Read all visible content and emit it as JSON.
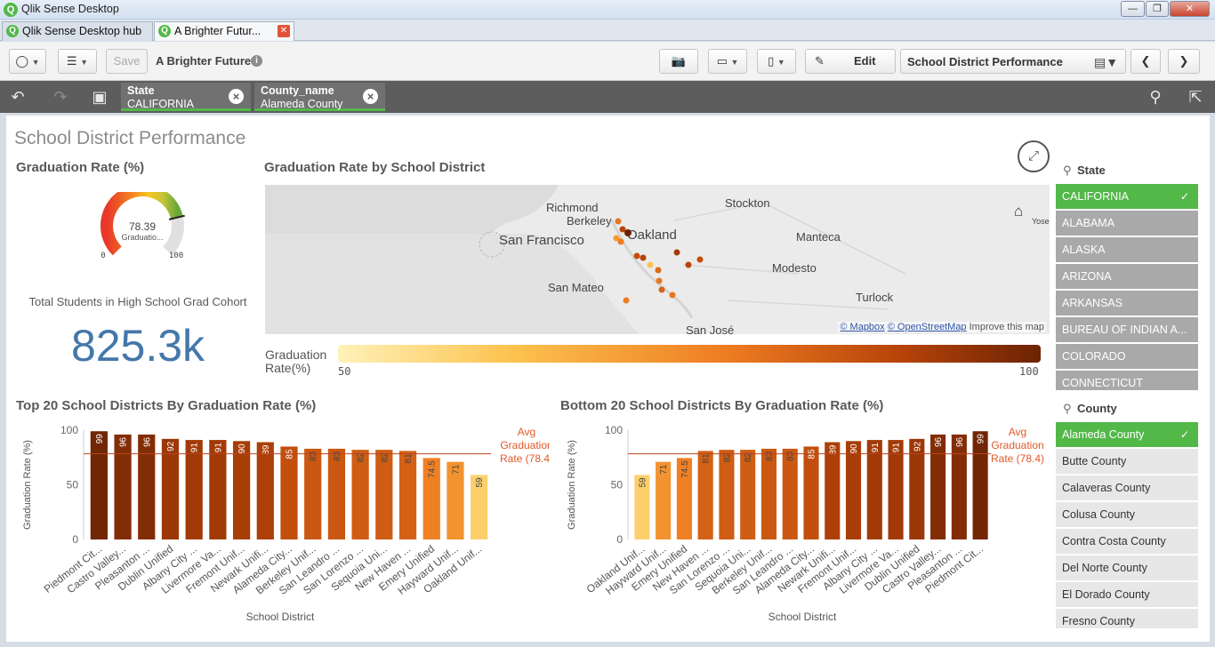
{
  "window": {
    "title": "Qlik Sense Desktop"
  },
  "tabs": [
    {
      "label": "Qlik Sense Desktop hub"
    },
    {
      "label": "A Brighter Futur..."
    }
  ],
  "toolbar": {
    "save_label": "Save",
    "app_title": "A Brighter Future",
    "edit_label": "Edit",
    "sheet_name": "School District Performance"
  },
  "selections": [
    {
      "field": "State",
      "value": "CALIFORNIA"
    },
    {
      "field": "County_name",
      "value": "Alameda County"
    }
  ],
  "sheet": {
    "title": "School District Performance",
    "gauge": {
      "title": "Graduation Rate (%)",
      "value": 78.39,
      "value_label": "78.39",
      "sublabel": "Graduatio...",
      "min_label": "0",
      "max_label": "100",
      "min": 0,
      "max": 100
    },
    "kpi": {
      "label": "Total Students in High School Grad Cohort",
      "value": "825.3k"
    },
    "map": {
      "title": "Graduation Rate by School District",
      "cities": [
        "Richmond",
        "Berkeley",
        "San Francisco",
        "Oakland",
        "Stockton",
        "Manteca",
        "Modesto",
        "San Mateo",
        "Turlock",
        "San José",
        "Yose"
      ],
      "credit_mapbox": "© Mapbox",
      "credit_osm": "© OpenStreetMap",
      "credit_improve": "Improve this map",
      "legend_title": "Graduation Rate(%)",
      "legend_min": "50",
      "legend_max": "100"
    },
    "state_list": {
      "title": "State",
      "items": [
        "CALIFORNIA",
        "ALABAMA",
        "ALASKA",
        "ARIZONA",
        "ARKANSAS",
        "BUREAU OF INDIAN A...",
        "COLORADO",
        "CONNECTICUT"
      ]
    },
    "county_list": {
      "title": "County",
      "items": [
        "Alameda County",
        "Butte County",
        "Calaveras County",
        "Colusa County",
        "Contra Costa County",
        "Del Norte County",
        "El Dorado County",
        "Fresno County"
      ]
    }
  },
  "chart_data": [
    {
      "type": "bar",
      "title": "Top 20 School Districts By Graduation Rate (%)",
      "xlabel": "School District",
      "ylabel": "Graduation Rate (%)",
      "ylim": [
        0,
        100
      ],
      "yticks": [
        "0",
        "50",
        "100"
      ],
      "categories": [
        "Piedmont Cit...",
        "Castro Valley...",
        "Pleasanton ...",
        "Dublin Unified",
        "Albany City ...",
        "Livermore Va...",
        "Fremont Unif...",
        "Newark Unifi...",
        "Alameda City...",
        "Berkeley Unif...",
        "San Leandro ...",
        "San Lorenzo ...",
        "Sequoia Uni...",
        "New Haven ...",
        "Emery Unified",
        "Hayward Unif...",
        "Oakland Unif..."
      ],
      "values": [
        99,
        96,
        96,
        92,
        91,
        91,
        90,
        89,
        85,
        83,
        83,
        82,
        82,
        81,
        74.5,
        71,
        59
      ],
      "value_labels": [
        "99",
        "96",
        "96",
        "92",
        "91",
        "91",
        "90",
        "89",
        "85",
        "83",
        "83",
        "82",
        "82",
        "81",
        "74.5",
        "71",
        "59"
      ],
      "reference_line": {
        "label": "Avg Graduation Rate (78.4)",
        "value": 78.4,
        "color": "#e05a2b"
      },
      "color_scale": [
        "#fff2b8",
        "#fcc24e",
        "#ee7d22",
        "#b74309",
        "#6b2304"
      ]
    },
    {
      "type": "bar",
      "title": "Bottom 20 School Districts By Graduation Rate (%)",
      "xlabel": "School District",
      "ylabel": "Graduation Rate (%)",
      "ylim": [
        0,
        100
      ],
      "yticks": [
        "0",
        "50",
        "100"
      ],
      "categories": [
        "Oakland Unif...",
        "Hayward Unif...",
        "Emery Unified",
        "New Haven ...",
        "San Lorenzo ...",
        "Sequoia Uni...",
        "Berkeley Unif...",
        "San Leandro ...",
        "Alameda City...",
        "Newark Unifi...",
        "Fremont Unif...",
        "Albany City ...",
        "Livermore Va...",
        "Dublin Unified",
        "Castro Valley...",
        "Pleasanton ...",
        "Piedmont Cit..."
      ],
      "values": [
        59,
        71,
        74.5,
        81,
        82,
        82,
        83,
        83,
        85,
        89,
        90,
        91,
        91,
        92,
        96,
        96,
        99
      ],
      "value_labels": [
        "59",
        "71",
        "74.5",
        "81",
        "82",
        "82",
        "83",
        "83",
        "85",
        "89",
        "90",
        "91",
        "91",
        "92",
        "96",
        "96",
        "99"
      ],
      "reference_line": {
        "label": "Avg Graduation Rate (78.4)",
        "value": 78.4,
        "color": "#e05a2b"
      },
      "color_scale": [
        "#fff2b8",
        "#fcc24e",
        "#ee7d22",
        "#b74309",
        "#6b2304"
      ]
    }
  ]
}
